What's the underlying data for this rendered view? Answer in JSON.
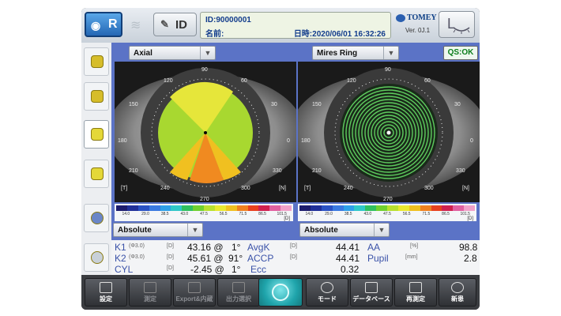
{
  "header": {
    "mode_label": "R",
    "id_label": "ID",
    "id_line": "ID:90000001",
    "name_label": "名前:",
    "datetime_line": "日時:2020/06/01 16:32:26",
    "brand": "TOMEY",
    "version": "Ver. 0J.1",
    "l_label": "L"
  },
  "left_panel": {
    "map_select": "Axial",
    "scale_select": "Absolute"
  },
  "right_panel": {
    "map_select": "Mires Ring",
    "scale_select": "Absolute",
    "qs_status": "QS:OK"
  },
  "axis_labels": [
    "90",
    "120",
    "150",
    "180",
    "210",
    "240",
    "270",
    "300",
    "330",
    "0",
    "30",
    "60"
  ],
  "eye_tags": {
    "temporal": "[T]",
    "nasal": "[N]"
  },
  "scale_ticks": [
    "14.0",
    "29.0",
    "38.5",
    "43.0",
    "47.5",
    "56.5",
    "71.5",
    "86.5",
    "101.5"
  ],
  "scale_unit": "[D]",
  "scale_colors": [
    "#1c1c6e",
    "#20309a",
    "#2a52c4",
    "#3a7ae0",
    "#2ea0e8",
    "#30c8c8",
    "#30c060",
    "#70d030",
    "#b8e030",
    "#e8e830",
    "#f0c020",
    "#f08020",
    "#e84020",
    "#d02050",
    "#e060a0",
    "#f0a0c8"
  ],
  "measurements": {
    "k1": {
      "label": "K1",
      "sub": "(Φ3.0)",
      "unit": "[D]",
      "value": "43.16 @",
      "axis": "1°"
    },
    "k2": {
      "label": "K2",
      "sub": "(Φ3.0)",
      "unit": "[D]",
      "value": "45.61 @",
      "axis": "91°"
    },
    "cyl": {
      "label": "CYL",
      "unit": "[D]",
      "value": "-2.45 @",
      "axis": "1°"
    },
    "avgk": {
      "label": "AvgK",
      "unit": "[D]",
      "value": "44.41"
    },
    "accp": {
      "label": "ACCP",
      "unit": "[D]",
      "value": "44.41"
    },
    "ecc": {
      "label": "Ecc",
      "value": "0.32"
    },
    "aa": {
      "label": "AA",
      "unit": "[%]",
      "value": "98.8"
    },
    "pupil": {
      "label": "Pupil",
      "unit": "[mm]",
      "value": "2.8"
    }
  },
  "bottom_buttons": [
    "設定",
    "測定",
    "Export&内蔵",
    "出力選択",
    "",
    "モード",
    "データベース",
    "再測定",
    "新患"
  ]
}
